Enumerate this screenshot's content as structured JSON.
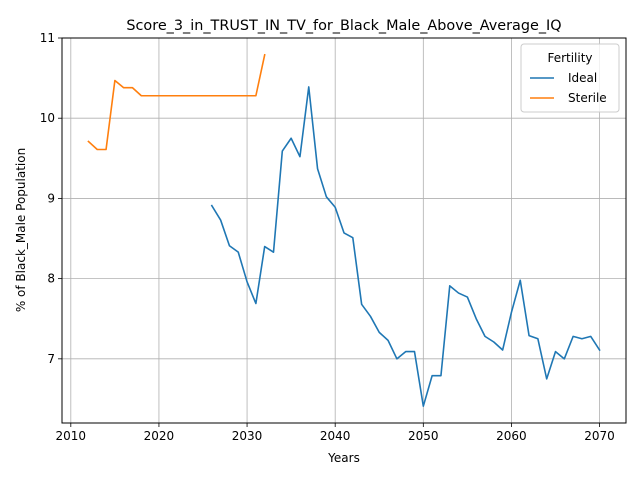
{
  "chart_data": {
    "type": "line",
    "title": "Score_3_in_TRUST_IN_TV_for_Black_Male_Above_Average_IQ",
    "xlabel": "Years",
    "ylabel": "% of Black_Male Population",
    "xlim": [
      2009,
      2073
    ],
    "ylim": [
      6.2,
      11.0
    ],
    "xticks": [
      2010,
      2020,
      2030,
      2040,
      2050,
      2060,
      2070
    ],
    "yticks": [
      7,
      8,
      9,
      10,
      11
    ],
    "grid": true,
    "legend": {
      "title": "Fertility",
      "position": "top-right"
    },
    "series": [
      {
        "name": "Ideal",
        "color": "#1f77b4",
        "x": [
          2026,
          2027,
          2028,
          2029,
          2030,
          2031,
          2032,
          2033,
          2034,
          2035,
          2036,
          2037,
          2038,
          2039,
          2040,
          2041,
          2042,
          2043,
          2044,
          2045,
          2046,
          2047,
          2048,
          2049,
          2050,
          2051,
          2052,
          2053,
          2054,
          2055,
          2056,
          2057,
          2058,
          2059,
          2060,
          2061,
          2062,
          2063,
          2064,
          2065,
          2066,
          2067,
          2068,
          2069,
          2070
        ],
        "y": [
          8.91,
          8.73,
          8.41,
          8.33,
          7.96,
          7.69,
          8.4,
          8.33,
          9.59,
          9.75,
          9.52,
          10.39,
          9.37,
          9.02,
          8.89,
          8.57,
          8.51,
          7.68,
          7.53,
          7.33,
          7.23,
          7.0,
          7.09,
          7.09,
          6.41,
          6.79,
          6.79,
          7.91,
          7.82,
          7.77,
          7.5,
          7.28,
          7.21,
          7.11,
          7.58,
          7.98,
          7.29,
          7.25,
          6.75,
          7.09,
          7.0,
          7.28,
          7.25,
          7.28,
          7.11
        ]
      },
      {
        "name": "Sterile",
        "color": "#ff7f0e",
        "x": [
          2012,
          2013,
          2014,
          2015,
          2016,
          2017,
          2018,
          2019,
          2020,
          2021,
          2022,
          2023,
          2024,
          2025,
          2026,
          2027,
          2028,
          2029,
          2030,
          2031,
          2032
        ],
        "y": [
          9.71,
          9.61,
          9.61,
          10.47,
          10.38,
          10.38,
          10.28,
          10.28,
          10.28,
          10.28,
          10.28,
          10.28,
          10.28,
          10.28,
          10.28,
          10.28,
          10.28,
          10.28,
          10.28,
          10.28,
          10.79
        ]
      }
    ]
  }
}
